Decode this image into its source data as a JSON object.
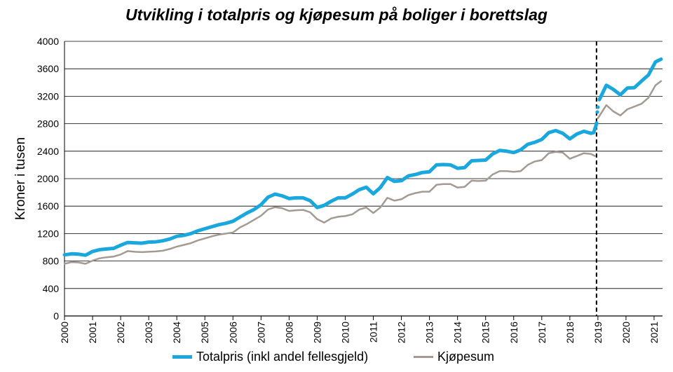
{
  "chart_data": {
    "type": "line",
    "title": "Utvikling i totalpris og kjøpesum på boliger i borettslag",
    "ylabel": "Kroner i tusen",
    "xlabel": "",
    "ylim": [
      0,
      4000
    ],
    "yticks": [
      0,
      400,
      800,
      1200,
      1600,
      2000,
      2400,
      2800,
      3200,
      3600,
      4000
    ],
    "xlim": [
      2000,
      2021.3
    ],
    "xticks": [
      2000,
      2001,
      2002,
      2003,
      2004,
      2005,
      2006,
      2007,
      2008,
      2009,
      2010,
      2011,
      2012,
      2013,
      2014,
      2015,
      2016,
      2017,
      2018,
      2019,
      2020,
      2021
    ],
    "xtick_labels": [
      "2000",
      "2001",
      "2002",
      "2003",
      "2004",
      "2005",
      "2006",
      "2007",
      "2008",
      "2009",
      "2010",
      "2011",
      "2012",
      "2013",
      "2014",
      "2015",
      "2016",
      "2017",
      "2018",
      "2019",
      "2020",
      "2021"
    ],
    "grid": "horizontal",
    "legend_position": "bottom",
    "vline": 2018.95,
    "series": [
      {
        "name": "Totalpris (inkl andel fellesgjeld)",
        "color": "#1aa7dd",
        "segments": [
          [
            [
              2000.0,
              890
            ],
            [
              2000.25,
              905
            ],
            [
              2000.5,
              900
            ],
            [
              2000.75,
              885
            ],
            [
              2001.0,
              940
            ],
            [
              2001.25,
              965
            ],
            [
              2001.5,
              975
            ],
            [
              2001.75,
              985
            ],
            [
              2002.0,
              1030
            ],
            [
              2002.25,
              1070
            ],
            [
              2002.5,
              1065
            ],
            [
              2002.75,
              1060
            ],
            [
              2003.0,
              1075
            ],
            [
              2003.25,
              1080
            ],
            [
              2003.5,
              1095
            ],
            [
              2003.75,
              1120
            ],
            [
              2004.0,
              1160
            ],
            [
              2004.25,
              1175
            ],
            [
              2004.5,
              1200
            ],
            [
              2004.75,
              1240
            ],
            [
              2005.0,
              1270
            ],
            [
              2005.25,
              1300
            ],
            [
              2005.5,
              1330
            ],
            [
              2005.75,
              1350
            ],
            [
              2006.0,
              1380
            ],
            [
              2006.25,
              1440
            ],
            [
              2006.5,
              1500
            ],
            [
              2006.75,
              1550
            ],
            [
              2007.0,
              1620
            ],
            [
              2007.25,
              1730
            ],
            [
              2007.5,
              1775
            ],
            [
              2007.75,
              1750
            ],
            [
              2008.0,
              1710
            ],
            [
              2008.25,
              1720
            ],
            [
              2008.5,
              1720
            ],
            [
              2008.75,
              1680
            ],
            [
              2009.0,
              1580
            ],
            [
              2009.25,
              1610
            ],
            [
              2009.5,
              1670
            ],
            [
              2009.75,
              1720
            ],
            [
              2010.0,
              1720
            ],
            [
              2010.25,
              1775
            ],
            [
              2010.5,
              1840
            ],
            [
              2010.75,
              1875
            ],
            [
              2011.0,
              1780
            ],
            [
              2011.25,
              1870
            ],
            [
              2011.5,
              2015
            ],
            [
              2011.75,
              1960
            ],
            [
              2012.0,
              1970
            ],
            [
              2012.25,
              2040
            ],
            [
              2012.5,
              2060
            ],
            [
              2012.75,
              2090
            ],
            [
              2013.0,
              2100
            ],
            [
              2013.25,
              2200
            ],
            [
              2013.5,
              2205
            ],
            [
              2013.75,
              2200
            ],
            [
              2014.0,
              2150
            ],
            [
              2014.25,
              2160
            ],
            [
              2014.5,
              2260
            ],
            [
              2014.75,
              2265
            ],
            [
              2015.0,
              2270
            ],
            [
              2015.25,
              2360
            ],
            [
              2015.5,
              2410
            ],
            [
              2015.75,
              2400
            ],
            [
              2016.0,
              2380
            ],
            [
              2016.25,
              2420
            ],
            [
              2016.5,
              2500
            ],
            [
              2016.75,
              2530
            ],
            [
              2017.0,
              2570
            ],
            [
              2017.25,
              2670
            ],
            [
              2017.5,
              2700
            ],
            [
              2017.75,
              2660
            ],
            [
              2018.0,
              2580
            ],
            [
              2018.25,
              2650
            ],
            [
              2018.5,
              2690
            ],
            [
              2018.75,
              2660
            ],
            [
              2018.85,
              2670
            ],
            [
              2018.95,
              2800
            ]
          ],
          [
            [
              2019.05,
              3150
            ],
            [
              2019.3,
              3360
            ],
            [
              2019.55,
              3300
            ],
            [
              2019.8,
              3220
            ],
            [
              2020.05,
              3320
            ],
            [
              2020.3,
              3325
            ],
            [
              2020.55,
              3420
            ],
            [
              2020.8,
              3510
            ],
            [
              2021.05,
              3700
            ],
            [
              2021.25,
              3740
            ]
          ]
        ],
        "markers": [
          [
            2018.95,
            2810
          ],
          [
            2018.98,
            2970
          ],
          [
            2019.0,
            3040
          ]
        ]
      },
      {
        "name": "Kjøpesum",
        "color": "#a39b91",
        "segments": [
          [
            [
              2000.0,
              760
            ],
            [
              2000.25,
              785
            ],
            [
              2000.5,
              780
            ],
            [
              2000.75,
              760
            ],
            [
              2001.0,
              805
            ],
            [
              2001.25,
              840
            ],
            [
              2001.5,
              855
            ],
            [
              2001.75,
              865
            ],
            [
              2002.0,
              895
            ],
            [
              2002.25,
              945
            ],
            [
              2002.5,
              935
            ],
            [
              2002.75,
              930
            ],
            [
              2003.0,
              935
            ],
            [
              2003.25,
              940
            ],
            [
              2003.5,
              950
            ],
            [
              2003.75,
              975
            ],
            [
              2004.0,
              1010
            ],
            [
              2004.25,
              1035
            ],
            [
              2004.5,
              1060
            ],
            [
              2004.75,
              1100
            ],
            [
              2005.0,
              1130
            ],
            [
              2005.25,
              1160
            ],
            [
              2005.5,
              1185
            ],
            [
              2005.75,
              1200
            ],
            [
              2006.0,
              1215
            ],
            [
              2006.25,
              1290
            ],
            [
              2006.5,
              1340
            ],
            [
              2006.75,
              1400
            ],
            [
              2007.0,
              1460
            ],
            [
              2007.25,
              1550
            ],
            [
              2007.5,
              1585
            ],
            [
              2007.75,
              1570
            ],
            [
              2008.0,
              1530
            ],
            [
              2008.25,
              1540
            ],
            [
              2008.5,
              1545
            ],
            [
              2008.75,
              1510
            ],
            [
              2009.0,
              1410
            ],
            [
              2009.25,
              1360
            ],
            [
              2009.5,
              1420
            ],
            [
              2009.75,
              1445
            ],
            [
              2010.0,
              1455
            ],
            [
              2010.25,
              1480
            ],
            [
              2010.5,
              1550
            ],
            [
              2010.75,
              1580
            ],
            [
              2011.0,
              1500
            ],
            [
              2011.25,
              1580
            ],
            [
              2011.5,
              1720
            ],
            [
              2011.75,
              1680
            ],
            [
              2012.0,
              1700
            ],
            [
              2012.25,
              1760
            ],
            [
              2012.5,
              1790
            ],
            [
              2012.75,
              1810
            ],
            [
              2013.0,
              1810
            ],
            [
              2013.25,
              1910
            ],
            [
              2013.5,
              1920
            ],
            [
              2013.75,
              1920
            ],
            [
              2014.0,
              1870
            ],
            [
              2014.25,
              1880
            ],
            [
              2014.5,
              1970
            ],
            [
              2014.75,
              1965
            ],
            [
              2015.0,
              1970
            ],
            [
              2015.25,
              2060
            ],
            [
              2015.5,
              2110
            ],
            [
              2015.75,
              2110
            ],
            [
              2016.0,
              2100
            ],
            [
              2016.25,
              2110
            ],
            [
              2016.5,
              2200
            ],
            [
              2016.75,
              2250
            ],
            [
              2017.0,
              2270
            ],
            [
              2017.25,
              2370
            ],
            [
              2017.5,
              2390
            ],
            [
              2017.75,
              2380
            ],
            [
              2018.0,
              2290
            ],
            [
              2018.25,
              2330
            ],
            [
              2018.5,
              2370
            ],
            [
              2018.75,
              2360
            ],
            [
              2018.9,
              2330
            ]
          ],
          [
            [
              2019.0,
              2880
            ],
            [
              2019.3,
              3070
            ],
            [
              2019.55,
              2980
            ],
            [
              2019.8,
              2920
            ],
            [
              2020.05,
              3010
            ],
            [
              2020.3,
              3050
            ],
            [
              2020.55,
              3090
            ],
            [
              2020.8,
              3180
            ],
            [
              2021.05,
              3360
            ],
            [
              2021.25,
              3420
            ]
          ]
        ],
        "markers": []
      }
    ]
  }
}
